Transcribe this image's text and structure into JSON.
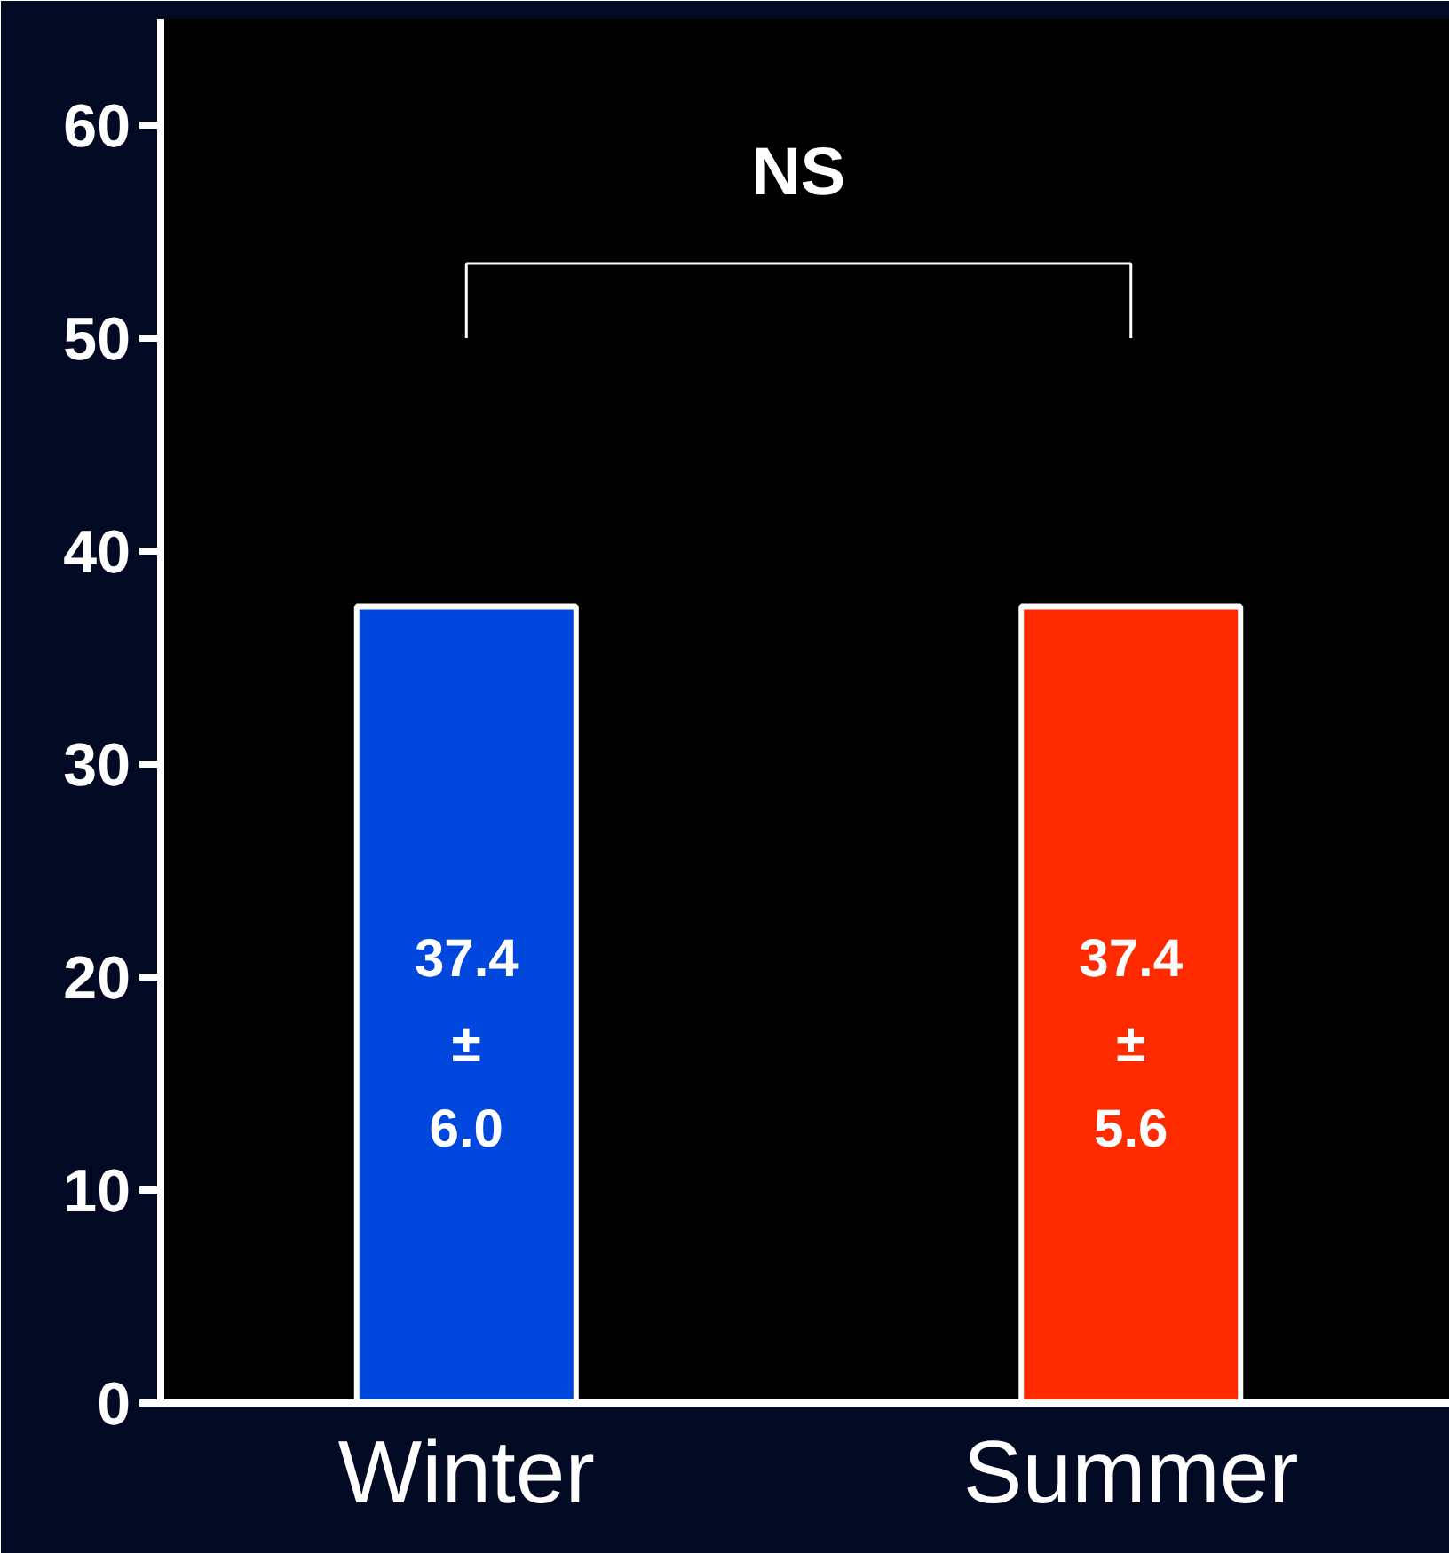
{
  "chart_data": {
    "type": "bar",
    "categories": [
      "Winter",
      "Summer"
    ],
    "values": [
      37.4,
      37.4
    ],
    "colors": [
      "#0048dd",
      "#ff2a00"
    ],
    "value_labels": [
      "37.4\n±\n6.0",
      "37.4\n±\n5.6"
    ],
    "ylim": [
      0,
      65
    ],
    "yticks": [
      0,
      10,
      20,
      30,
      40,
      50,
      60
    ],
    "annotations": [
      "NS"
    ]
  }
}
